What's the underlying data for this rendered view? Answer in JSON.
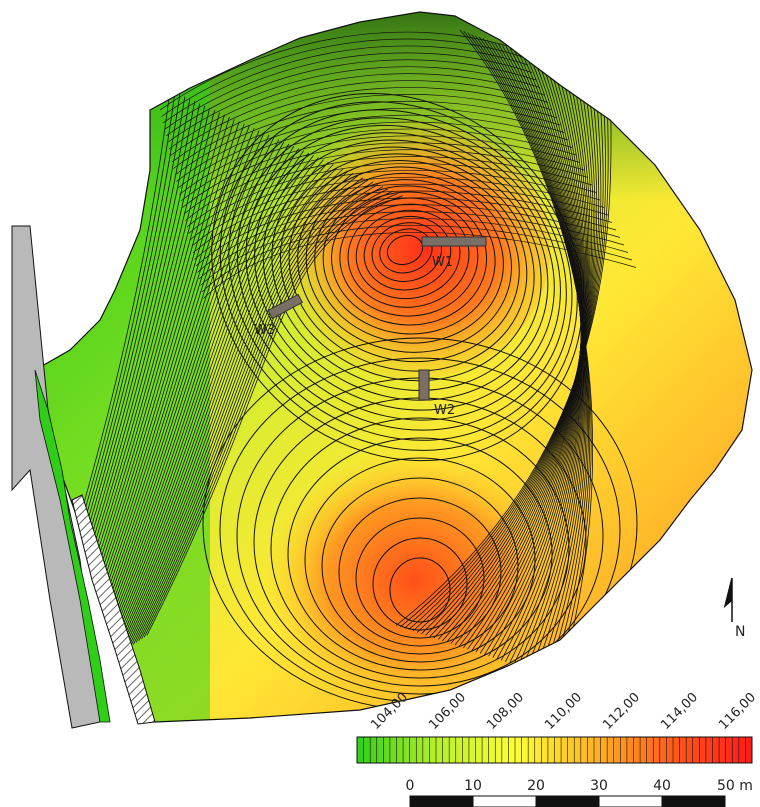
{
  "trenches": [
    {
      "label": "W1"
    },
    {
      "label": "W2"
    },
    {
      "label": "W3"
    }
  ],
  "legend": {
    "ticks": [
      "104,00",
      "106,00",
      "108,00",
      "110,00",
      "112,00",
      "114,00",
      "116,00"
    ],
    "gradient_colors": [
      "#2fcf18",
      "#b6ef2a",
      "#ffff33",
      "#ffb426",
      "#ff5a1a",
      "#ff1a1a"
    ]
  },
  "scalebar": {
    "labels": [
      "0",
      "10",
      "20",
      "30",
      "40",
      "50 m"
    ]
  },
  "north_arrow": {
    "label": "N"
  },
  "colors": {
    "road": "#b9b9b9",
    "contour": "#111111",
    "trench": "#7a6f66"
  }
}
